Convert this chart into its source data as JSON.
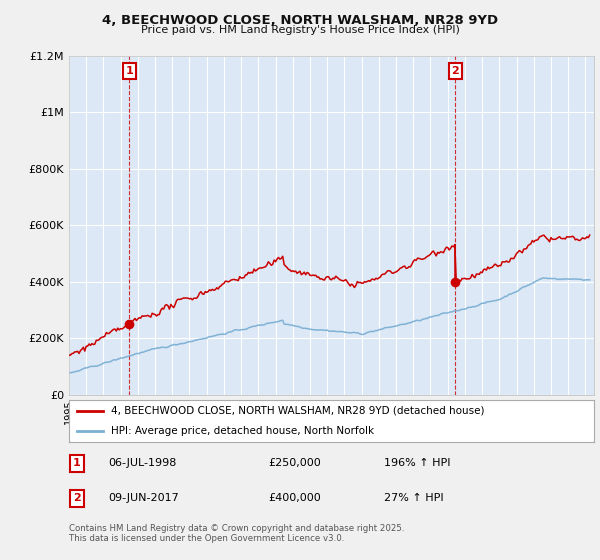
{
  "title1": "4, BEECHWOOD CLOSE, NORTH WALSHAM, NR28 9YD",
  "title2": "Price paid vs. HM Land Registry's House Price Index (HPI)",
  "background_color": "#f0f0f0",
  "plot_bg_color": "#dce8f5",
  "purchase1": {
    "date_num": 1998.51,
    "price": 250000,
    "label": "1",
    "annotation": "06-JUL-1998",
    "value_str": "£250,000",
    "hpi_str": "196% ↑ HPI"
  },
  "purchase2": {
    "date_num": 2017.44,
    "price": 400000,
    "label": "2",
    "annotation": "09-JUN-2017",
    "value_str": "£400,000",
    "hpi_str": "27% ↑ HPI"
  },
  "legend_line1": "4, BEECHWOOD CLOSE, NORTH WALSHAM, NR28 9YD (detached house)",
  "legend_line2": "HPI: Average price, detached house, North Norfolk",
  "footer": "Contains HM Land Registry data © Crown copyright and database right 2025.\nThis data is licensed under the Open Government Licence v3.0.",
  "red_color": "#cc0000",
  "blue_color": "#7bafd4",
  "ylim": [
    0,
    1200000
  ],
  "xlim_start": 1995.0,
  "xlim_end": 2025.5,
  "yticks": [
    0,
    200000,
    400000,
    600000,
    800000,
    1000000,
    1200000
  ],
  "ytick_labels": [
    "£0",
    "£200K",
    "£400K",
    "£600K",
    "£800K",
    "£1M",
    "£1.2M"
  ]
}
